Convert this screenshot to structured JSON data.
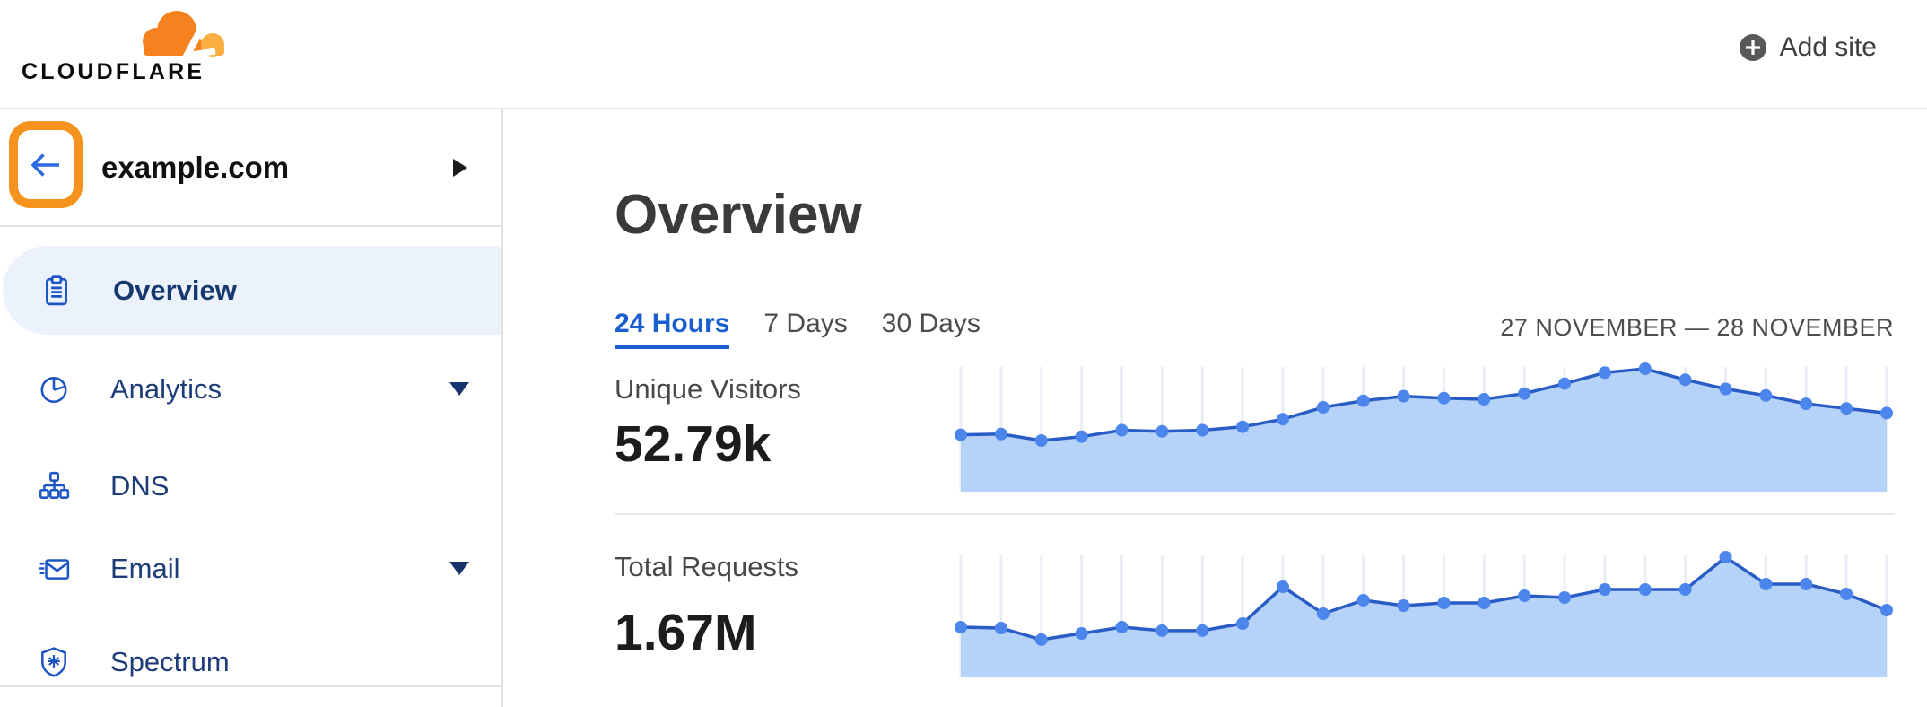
{
  "header": {
    "logo_text": "CLOUDFLARE",
    "add_site_label": "Add site"
  },
  "sidebar": {
    "site_name": "example.com",
    "items": [
      {
        "label": "Overview",
        "icon": "clipboard-icon",
        "active": true,
        "expandable": false
      },
      {
        "label": "Analytics",
        "icon": "pie-chart-icon",
        "active": false,
        "expandable": true
      },
      {
        "label": "DNS",
        "icon": "dns-tree-icon",
        "active": false,
        "expandable": false
      },
      {
        "label": "Email",
        "icon": "email-icon",
        "active": false,
        "expandable": true
      },
      {
        "label": "Spectrum",
        "icon": "shield-icon",
        "active": false,
        "expandable": false
      }
    ]
  },
  "main": {
    "title": "Overview",
    "tabs": [
      {
        "label": "24 Hours",
        "active": true
      },
      {
        "label": "7 Days",
        "active": false
      },
      {
        "label": "30 Days",
        "active": false
      }
    ],
    "date_range": "27 NOVEMBER — 28 NOVEMBER",
    "metrics": [
      {
        "label": "Unique Visitors",
        "value": "52.79k"
      },
      {
        "label": "Total Requests",
        "value": "1.67M"
      }
    ]
  },
  "colors": {
    "brand-orange": "#F6821F",
    "brand-orange-light": "#FBAD41",
    "annotation-orange": "#F6931E",
    "arrow-blue": "#2B6BE1",
    "link-blue": "#1A5FD0",
    "icon-blue": "#1D55C4",
    "nav-text": "#1D3C78",
    "nav-active-bg": "#EBF2FB",
    "chart-line": "#2A5CC5",
    "chart-dot": "#4C86EC",
    "chart-fill": "#B5D2F8",
    "chart-grid": "#E9EEF5"
  },
  "chart_data": [
    {
      "type": "area",
      "title": "Unique Visitors",
      "total_shown": "52.79k",
      "x_points": 24,
      "x_range": "27 November — 28 November (24 Hours view, hourly)",
      "values_estimated": true,
      "values": [
        1490,
        1510,
        1340,
        1440,
        1610,
        1580,
        1610,
        1700,
        1900,
        2210,
        2380,
        2500,
        2450,
        2420,
        2570,
        2830,
        3120,
        3220,
        2930,
        2690,
        2520,
        2300,
        2180,
        2060
      ],
      "grid": "vertical-only",
      "axis_labels_shown": false
    },
    {
      "type": "area",
      "title": "Total Requests",
      "total_shown": "1.67M",
      "x_points": 24,
      "x_range": "27 November — 28 November (24 Hours view, hourly)",
      "values_estimated": true,
      "values": [
        49300,
        48400,
        37000,
        43100,
        49300,
        45800,
        45800,
        52800,
        88900,
        62500,
        75700,
        70400,
        73000,
        73000,
        80100,
        78300,
        86200,
        86200,
        86200,
        117900,
        91500,
        91500,
        81800,
        66000
      ],
      "grid": "vertical-only",
      "axis_labels_shown": false
    }
  ]
}
